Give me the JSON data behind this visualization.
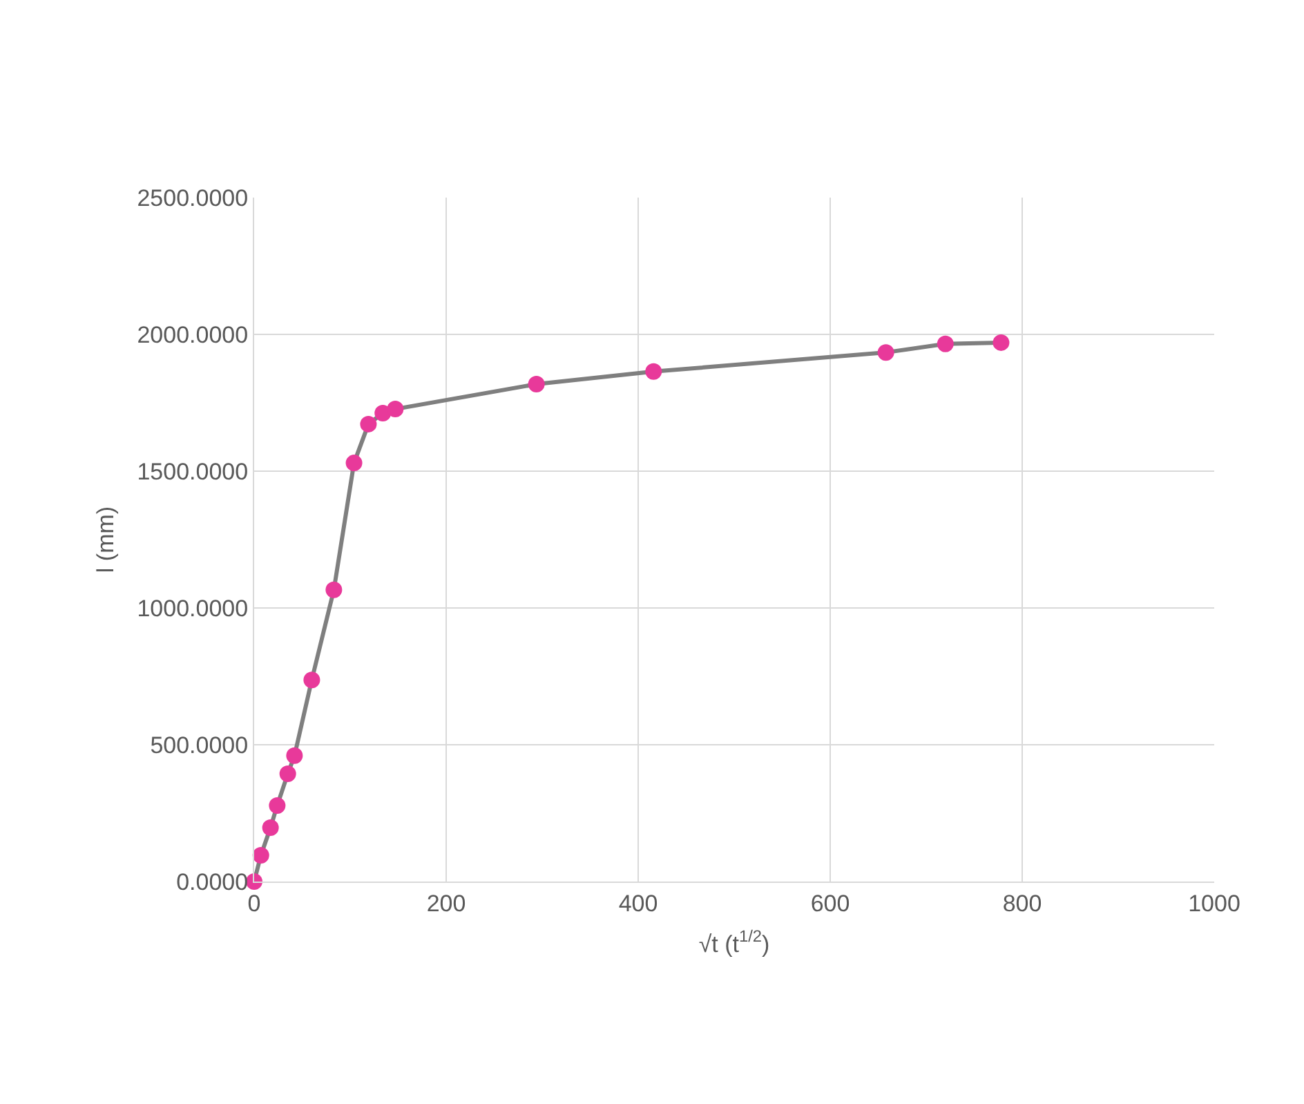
{
  "chart_data": {
    "type": "line",
    "xlabel": "√t (t$^{1/2}$)",
    "ylabel": "l (mm)",
    "x": [
      0,
      7,
      17,
      24,
      35,
      42,
      60,
      83,
      104,
      119,
      134,
      147,
      294,
      416,
      658,
      720,
      778
    ],
    "series": [
      {
        "color": "#e8399a",
        "values": [
          0,
          96,
          197,
          278,
          394,
          460,
          737,
          1066,
          1530,
          1672,
          1712,
          1727,
          1818,
          1864,
          1934,
          1965,
          1970
        ]
      }
    ],
    "xlim": [
      0,
      1000
    ],
    "xticks": [
      0,
      200,
      400,
      600,
      800,
      1000
    ],
    "ylim": [
      0,
      2500
    ],
    "yticks": [
      {
        "value": 0,
        "label": "0.0000"
      },
      {
        "value": 500,
        "label": "500.0000"
      },
      {
        "value": 1000,
        "label": "1000.0000"
      },
      {
        "value": 1500,
        "label": "1500.0000"
      },
      {
        "value": 2000,
        "label": "2000.0000"
      },
      {
        "value": 2500,
        "label": "2500.0000"
      }
    ],
    "grid": true,
    "marker": "circle",
    "line_style": "solid"
  }
}
